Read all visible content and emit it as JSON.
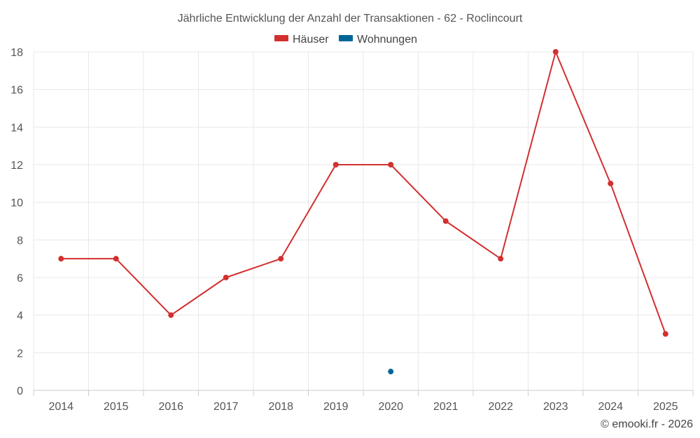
{
  "chart_data": {
    "type": "line",
    "title": "Jährliche Entwicklung der Anzahl der Transaktionen - 62 - Roclincourt",
    "xlabel": "",
    "ylabel": "",
    "categories": [
      "2014",
      "2015",
      "2016",
      "2017",
      "2018",
      "2019",
      "2020",
      "2021",
      "2022",
      "2023",
      "2024",
      "2025"
    ],
    "ylim": [
      0,
      18
    ],
    "yticks": [
      0,
      2,
      4,
      6,
      8,
      10,
      12,
      14,
      16,
      18
    ],
    "grid": true,
    "legend_position": "top-center",
    "series": [
      {
        "name": "Häuser",
        "color": "#d32f2f",
        "values": [
          7,
          7,
          4,
          6,
          7,
          12,
          12,
          9,
          7,
          18,
          11,
          3
        ]
      },
      {
        "name": "Wohnungen",
        "color": "#006699",
        "values": [
          null,
          null,
          null,
          null,
          null,
          null,
          1,
          null,
          null,
          null,
          null,
          null
        ]
      }
    ]
  },
  "credit": "© emooki.fr - 2026"
}
